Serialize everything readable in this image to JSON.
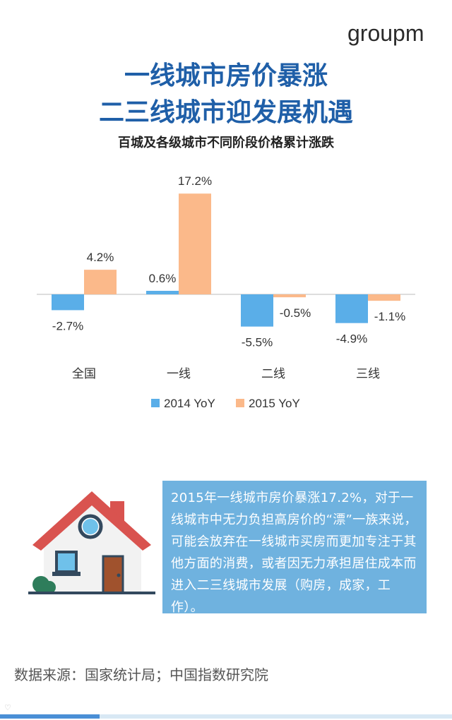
{
  "brand": {
    "logo_text": "groupm"
  },
  "header": {
    "title_line1": "一线城市房价暴涨",
    "title_line2": "二三线城市迎发展机遇",
    "subtitle": "百城及各级城市不同阶段价格累计涨跌"
  },
  "chart_data": {
    "type": "bar",
    "title": "百城及各级城市不同阶段价格累计涨跌",
    "categories": [
      "全国",
      "一线",
      "二线",
      "三线"
    ],
    "series": [
      {
        "name": "2014 YoY",
        "values": [
          -2.7,
          0.6,
          -5.5,
          -4.9
        ],
        "labels": [
          "-2.7%",
          "0.6%",
          "-5.5%",
          "-4.9%"
        ],
        "color": "#5aaee8"
      },
      {
        "name": "2015 YoY",
        "values": [
          4.2,
          17.2,
          -0.5,
          -1.1
        ],
        "labels": [
          "4.2%",
          "17.2%",
          "-0.5%",
          "-1.1%"
        ],
        "color": "#fbb98a"
      }
    ],
    "ylim": [
      -6,
      18
    ],
    "legend_position": "bottom",
    "grid": false
  },
  "callout": {
    "text": "2015年一线城市房价暴涨17.2%，对于一线城市中无力负担高房价的“漂”一族来说，可能会放弃在一线城市买房而更加专注于其他方面的消费，或者因无力承担居住成本而进入二三线城市发展（购房，成家，工作）。"
  },
  "footer": {
    "source": "数据来源：国家统计局；中国指数研究院"
  },
  "colors": {
    "title": "#1f5fa8",
    "callout_bg": "#6fb2df",
    "bar_2014": "#5aaee8",
    "bar_2015": "#fbb98a",
    "roof": "#d9534f",
    "wall": "#f2f2f2",
    "door": "#a0522d"
  }
}
